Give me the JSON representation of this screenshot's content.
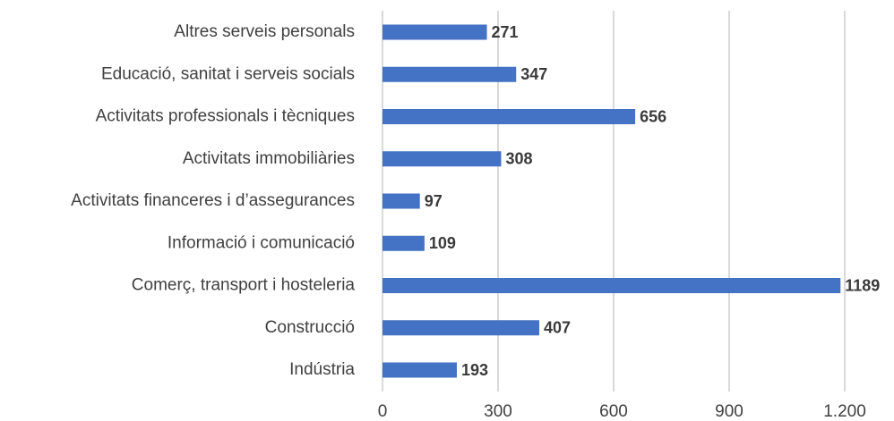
{
  "chart_data": {
    "type": "bar",
    "orientation": "horizontal",
    "categories": [
      "Altres serveis personals",
      "Educació, sanitat i serveis socials",
      "Activitats professionals i tècniques",
      "Activitats immobiliàries",
      "Activitats financeres i d’assegurances",
      "Informació i comunicació",
      "Comerç, transport i hosteleria",
      "Construcció",
      "Indústria"
    ],
    "values": [
      271,
      347,
      656,
      308,
      97,
      109,
      1189,
      407,
      193
    ],
    "color": "#4472c4",
    "xlim": [
      0,
      1200
    ],
    "xticks": [
      0,
      300,
      600,
      900,
      {
        "value": 1200,
        "label": "1.200"
      }
    ],
    "grid": true
  }
}
